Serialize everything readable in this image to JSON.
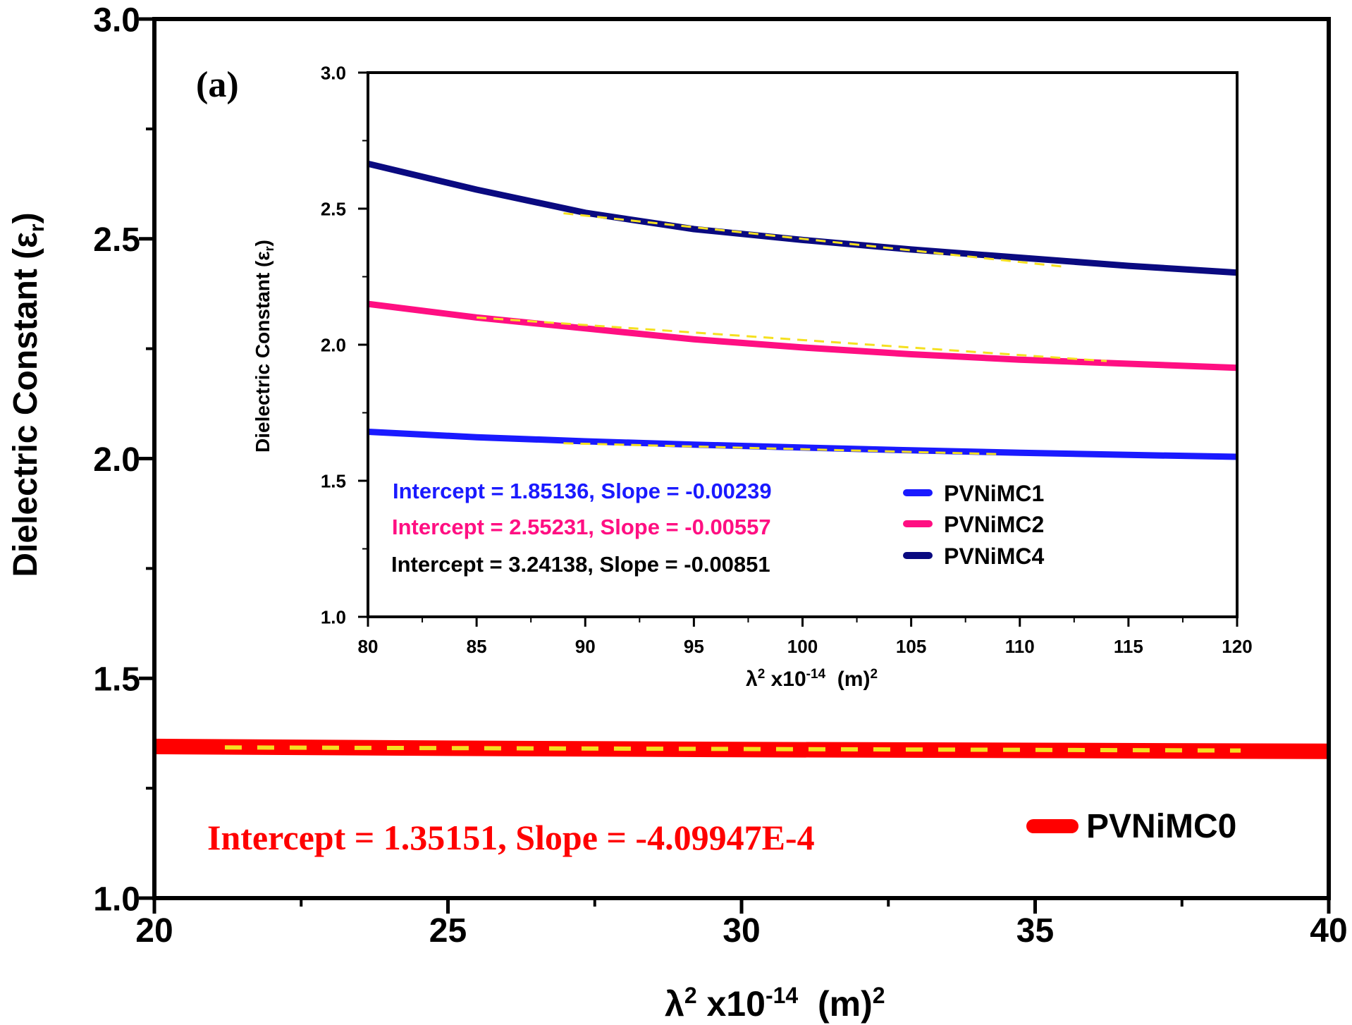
{
  "panel_label": "(a)",
  "chart_data": [
    {
      "type": "line",
      "role": "main",
      "xlabel": "λ² x10⁻¹⁴ (m)²",
      "xlabel_parts": {
        "base": "λ",
        "sup1": "2",
        "mid": " x10",
        "sup2": "-14",
        "end": "  (m)",
        "sup3": "2"
      },
      "ylabel": "Dielectric Constant (εr)",
      "ylabel_parts": {
        "base": "Dielectric Constant (ε",
        "sub": "r",
        "end": ")"
      },
      "xlim": [
        20,
        40
      ],
      "ylim": [
        1.0,
        3.0
      ],
      "xticks": [
        20,
        25,
        30,
        35,
        40
      ],
      "xtick_labels": [
        "20",
        "25",
        "30",
        "35",
        "40"
      ],
      "yticks": [
        1.0,
        1.5,
        2.0,
        2.5,
        3.0
      ],
      "ytick_labels": [
        "1.0",
        "1.5",
        "2.0",
        "2.5",
        "3.0"
      ],
      "series": [
        {
          "name": "PVNiMC0",
          "color": "#ff0000",
          "x": [
            20,
            25,
            30,
            35,
            40
          ],
          "y": [
            1.345,
            1.341,
            1.338,
            1.336,
            1.334
          ]
        }
      ],
      "fit": {
        "color": "#f5e020",
        "x": [
          21.2,
          38.5
        ],
        "y": [
          1.3428,
          1.3358
        ]
      },
      "annotation": {
        "text": "Intercept = 1.35151, Slope = -4.09947E-4",
        "color": "#ff0000"
      },
      "legend": [
        {
          "label": "PVNiMC0",
          "color": "#ff0000"
        }
      ]
    },
    {
      "type": "line",
      "role": "inset",
      "xlabel": "λ² x10⁻¹⁴ (m)²",
      "xlabel_parts": {
        "base": "λ",
        "sup1": "2",
        "mid": " x10",
        "sup2": "-14",
        "end": "  (m)",
        "sup3": "2"
      },
      "ylabel": "Dielectric Constant (εr)",
      "ylabel_parts": {
        "base": "Dielectric Constant (ε",
        "sub": "r",
        "end": ")"
      },
      "xlim": [
        80,
        120
      ],
      "ylim": [
        1.0,
        3.0
      ],
      "xticks": [
        80,
        85,
        90,
        95,
        100,
        105,
        110,
        115,
        120
      ],
      "xtick_labels": [
        "80",
        "85",
        "90",
        "95",
        "100",
        "105",
        "110",
        "115",
        "120"
      ],
      "yticks": [
        1.0,
        1.5,
        2.0,
        2.5,
        3.0
      ],
      "ytick_labels": [
        "1.0",
        "1.5",
        "2.0",
        "2.5",
        "3.0"
      ],
      "series": [
        {
          "name": "PVNiMC1",
          "color": "#1a1aff",
          "x": [
            80,
            85,
            90,
            95,
            100,
            105,
            110,
            115,
            120
          ],
          "y": [
            1.68,
            1.66,
            1.645,
            1.633,
            1.622,
            1.612,
            1.603,
            1.595,
            1.588
          ]
        },
        {
          "name": "PVNiMC2",
          "color": "#ff0f82",
          "x": [
            80,
            85,
            90,
            95,
            100,
            105,
            110,
            115,
            120
          ],
          "y": [
            2.15,
            2.1,
            2.06,
            2.02,
            1.99,
            1.965,
            1.945,
            1.93,
            1.915
          ]
        },
        {
          "name": "PVNiMC4",
          "color": "#0a0a80",
          "x": [
            80,
            85,
            90,
            95,
            100,
            105,
            110,
            115,
            120
          ],
          "y": [
            2.665,
            2.57,
            2.485,
            2.425,
            2.385,
            2.35,
            2.32,
            2.29,
            2.265
          ]
        }
      ],
      "fits": [
        {
          "color": "#f5e020",
          "x": [
            89,
            109
          ],
          "y": [
            1.638,
            1.598
          ]
        },
        {
          "color": "#f5e020",
          "x": [
            85,
            114
          ],
          "y": [
            2.1,
            1.94
          ]
        },
        {
          "color": "#f5e020",
          "x": [
            89,
            112
          ],
          "y": [
            2.483,
            2.287
          ]
        }
      ],
      "annotations": [
        {
          "text": "Intercept = 1.85136, Slope = -0.00239",
          "color": "#1a1aff"
        },
        {
          "text": "Intercept = 2.55231, Slope = -0.00557",
          "color": "#ff0f82"
        },
        {
          "text": "Intercept = 3.24138, Slope = -0.00851",
          "color": "#000000"
        }
      ],
      "legend": [
        {
          "label": "PVNiMC1",
          "color": "#1a1aff"
        },
        {
          "label": "PVNiMC2",
          "color": "#ff0f82"
        },
        {
          "label": "PVNiMC4",
          "color": "#0a0a80"
        }
      ]
    }
  ]
}
